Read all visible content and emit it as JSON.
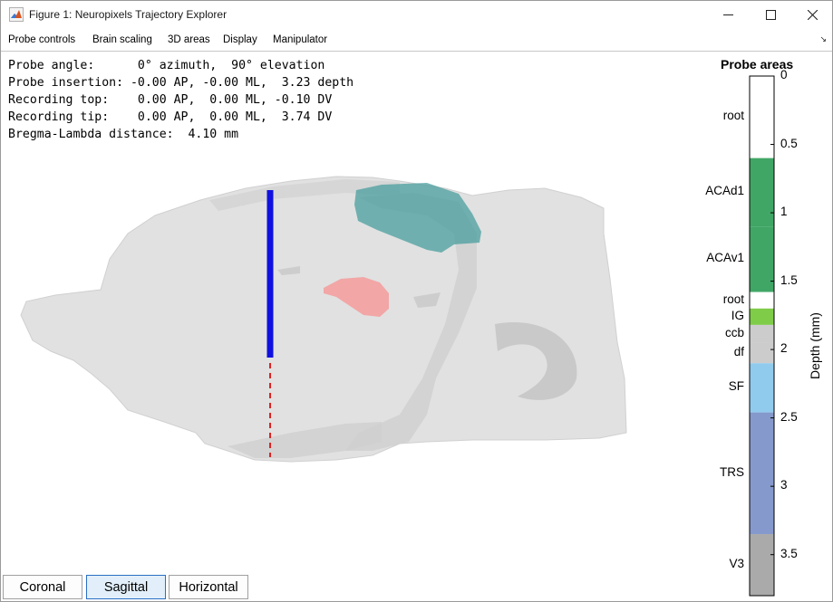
{
  "window": {
    "title": "Figure 1: Neuropixels Trajectory Explorer"
  },
  "menu": {
    "items": [
      "Probe controls",
      "Brain scaling",
      "3D areas",
      "Display",
      "Manipulator"
    ]
  },
  "info": {
    "lines": [
      "Probe angle:      0° azimuth,  90° elevation",
      "Probe insertion: -0.00 AP, -0.00 ML,  3.23 depth",
      "Recording top:    0.00 AP,  0.00 ML, -0.10 DV",
      "Recording tip:    0.00 AP,  0.00 ML,  3.74 DV",
      "Bregma-Lambda distance:  4.10 mm"
    ]
  },
  "probe_areas": {
    "title": "Probe areas",
    "depth_axis_label": "Depth (mm)",
    "depth_range": [
      0,
      3.8
    ],
    "ticks": [
      "0",
      "0.5",
      "1",
      "1.5",
      "2",
      "2.5",
      "3",
      "3.5"
    ],
    "segments": [
      {
        "label": "root",
        "from": 0.0,
        "to": 0.6,
        "color": "#ffffff"
      },
      {
        "label": "ACAd1",
        "from": 0.6,
        "to": 1.1,
        "color": "#40a666"
      },
      {
        "label": "ACAv1",
        "from": 1.1,
        "to": 1.58,
        "color": "#40a666"
      },
      {
        "label": "root",
        "from": 1.58,
        "to": 1.7,
        "color": "#ffffff"
      },
      {
        "label": "IG",
        "from": 1.7,
        "to": 1.82,
        "color": "#7fcc48"
      },
      {
        "label": "ccb",
        "from": 1.82,
        "to": 1.95,
        "color": "#cccccc"
      },
      {
        "label": "df",
        "from": 1.95,
        "to": 2.1,
        "color": "#cccccc"
      },
      {
        "label": "SF",
        "from": 2.1,
        "to": 2.46,
        "color": "#90cbed"
      },
      {
        "label": "TRS",
        "from": 2.46,
        "to": 3.35,
        "color": "#8599cc"
      },
      {
        "label": "V3",
        "from": 3.35,
        "to": 3.8,
        "color": "#aaaaaa"
      }
    ]
  },
  "view_buttons": {
    "coronal": "Coronal",
    "sagittal": "Sagittal",
    "horizontal": "Horizontal",
    "active": "Sagittal"
  },
  "colors": {
    "probe_recording": "#1010e0",
    "probe_trajectory": "#e02020",
    "brain_outline": "#d9d9d9",
    "area_acc": "#4a9e9e",
    "area_pink": "#f2a6a6"
  }
}
